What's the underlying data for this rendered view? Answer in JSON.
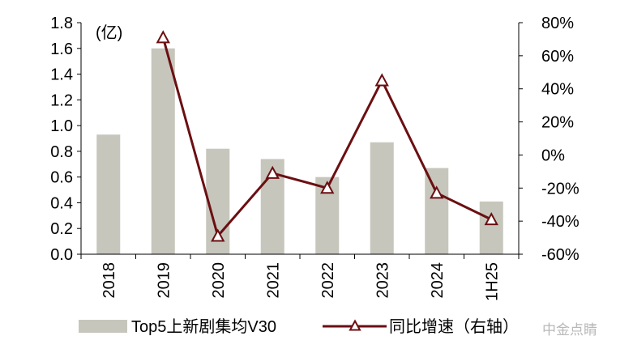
{
  "chart_data": {
    "type": "bar",
    "categories": [
      "2018",
      "2019",
      "2020",
      "2021",
      "2022",
      "2023",
      "2024",
      "1H25"
    ],
    "series": [
      {
        "name": "Top5上新剧集均V30",
        "type": "bar",
        "axis": "left",
        "color": "#c6c6bc",
        "values": [
          0.93,
          1.6,
          0.82,
          0.74,
          0.6,
          0.87,
          0.67,
          0.41
        ]
      },
      {
        "name": "同比增速（右轴）",
        "type": "line",
        "axis": "right",
        "color": "#6b0f12",
        "marker": "open-triangle",
        "values": [
          null,
          71,
          -49,
          -11,
          -20,
          45,
          -23,
          -39
        ]
      }
    ],
    "left_axis": {
      "unit_label": "(亿)",
      "ylim": [
        0,
        1.8
      ],
      "ticks": [
        "0.0",
        "0.2",
        "0.4",
        "0.6",
        "0.8",
        "1.0",
        "1.2",
        "1.4",
        "1.6",
        "1.8"
      ]
    },
    "right_axis": {
      "ylim": [
        -60,
        80
      ],
      "ticks": [
        "-60%",
        "-40%",
        "-20%",
        "0%",
        "20%",
        "40%",
        "60%",
        "80%"
      ]
    },
    "grid": false,
    "legend_position": "bottom",
    "watermark": "中金点睛"
  }
}
